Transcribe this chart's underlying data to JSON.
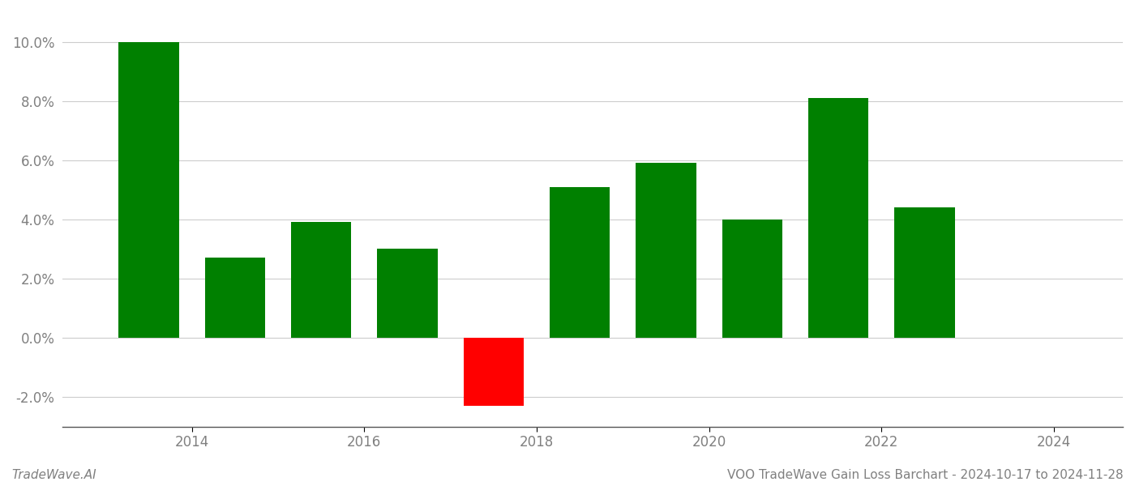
{
  "years": [
    2013.5,
    2014.5,
    2015.5,
    2016.5,
    2017.5,
    2018.5,
    2019.5,
    2020.5,
    2021.5,
    2022.5
  ],
  "values": [
    0.1,
    0.027,
    0.039,
    0.03,
    -0.023,
    0.051,
    0.059,
    0.04,
    0.081,
    0.044
  ],
  "colors": [
    "#008000",
    "#008000",
    "#008000",
    "#008000",
    "#ff0000",
    "#008000",
    "#008000",
    "#008000",
    "#008000",
    "#008000"
  ],
  "ylim": [
    -0.03,
    0.11
  ],
  "yticks": [
    -0.02,
    0.0,
    0.02,
    0.04,
    0.06,
    0.08,
    0.1
  ],
  "xlim": [
    2012.5,
    2024.8
  ],
  "xticks": [
    2014,
    2016,
    2018,
    2020,
    2022,
    2024
  ],
  "xtick_labels": [
    "2014",
    "2016",
    "2018",
    "2020",
    "2022",
    "2024"
  ],
  "grid_color": "#cccccc",
  "background_color": "#ffffff",
  "bar_width": 0.7,
  "title_text": "VOO TradeWave Gain Loss Barchart - 2024-10-17 to 2024-11-28",
  "watermark_text": "TradeWave.AI",
  "title_fontsize": 11,
  "watermark_fontsize": 11,
  "axis_label_color": "#808080",
  "spine_color": "#555555"
}
